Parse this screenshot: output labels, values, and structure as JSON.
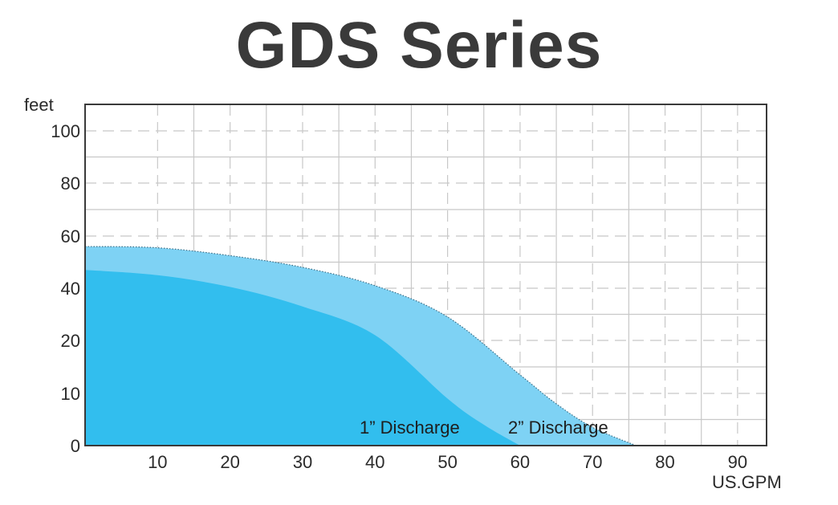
{
  "chart_data": {
    "type": "area",
    "title": "GDS Series",
    "xlabel": "US.GPM",
    "ylabel": "feet",
    "x_ticks": [
      "10",
      "20",
      "30",
      "40",
      "50",
      "60",
      "70",
      "80",
      "90"
    ],
    "y_ticks": [
      "0",
      "10",
      "20",
      "40",
      "60",
      "80",
      "100"
    ],
    "y_scale": "non-linear (0-10-20 spacing compressed above 20 in equal 20-ft steps)",
    "xlim": [
      0,
      94
    ],
    "ylim": [
      0,
      110
    ],
    "grid": true,
    "legend": "inline curve labels",
    "colors": {
      "one_inch": "#32BEEE",
      "two_inch": "#7ED2F4",
      "grid": "#c8c8c8",
      "frame": "#3a3a3a"
    },
    "series": [
      {
        "name": "1” Discharge",
        "x": [
          0,
          10,
          20,
          30,
          40,
          50,
          55,
          60
        ],
        "y": [
          47,
          45,
          40.5,
          33,
          22,
          9,
          4,
          0
        ]
      },
      {
        "name": "2” Discharge",
        "x": [
          0,
          10,
          20,
          30,
          40,
          50,
          60,
          65,
          70,
          76
        ],
        "y": [
          56,
          55.5,
          52.5,
          48,
          41,
          29,
          13.5,
          8,
          3.5,
          0
        ]
      }
    ]
  }
}
